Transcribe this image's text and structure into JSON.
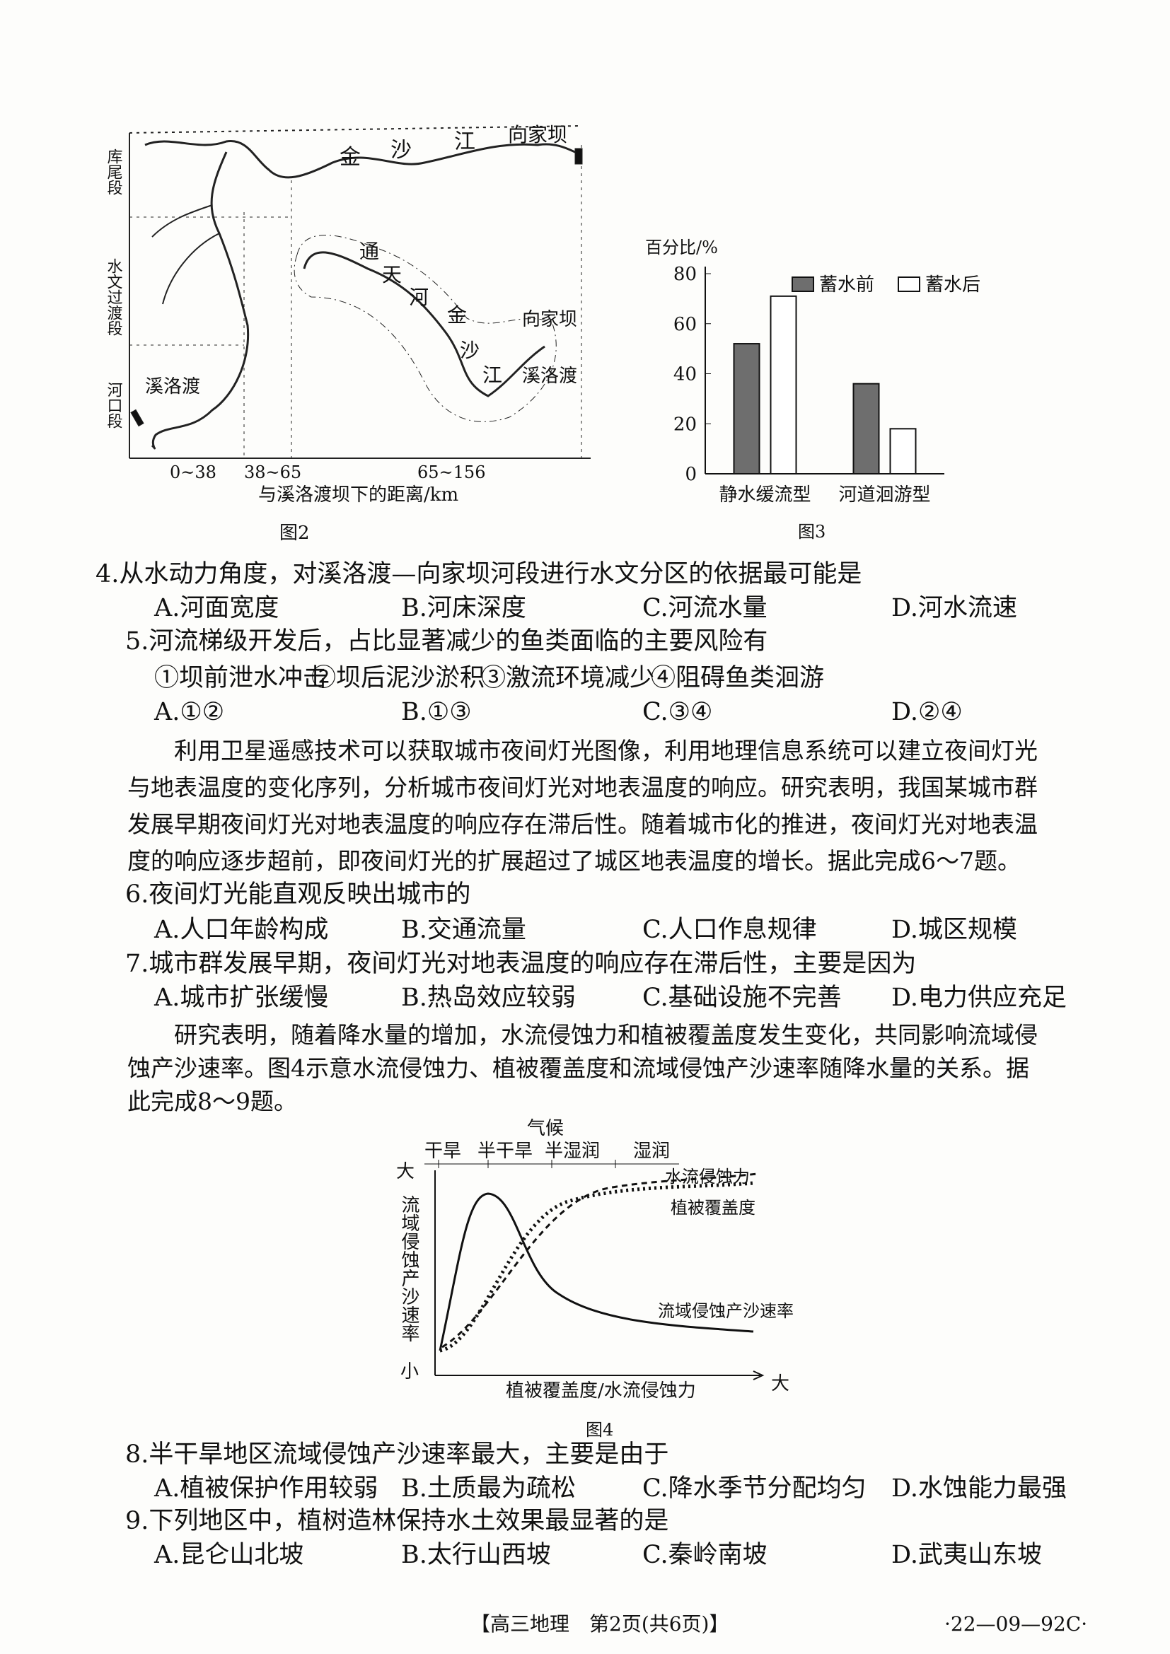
{
  "figure2": {
    "caption": "图2",
    "river_labels": [
      "金",
      "沙",
      "江"
    ],
    "dam_top": "向家坝",
    "left_sections": [
      "库尾段",
      "水文过渡段",
      "河口段"
    ],
    "inset_labels": [
      "通",
      "天",
      "河",
      "金",
      "沙",
      "江"
    ],
    "inset_dam_upper": "向家坝",
    "inset_dam_lower": "溪洛渡",
    "dam_left": "溪洛渡",
    "x_ticks": [
      "0~38",
      "38~65",
      "65~156"
    ],
    "x_label": "与溪洛渡坝下的距离/km"
  },
  "figure3": {
    "caption": "图3",
    "y_label": "百分比/%",
    "categories": [
      "静水缓流型",
      "河道洄游型"
    ],
    "series": [
      {
        "name": "蓄水前",
        "color": "#6e6e6e",
        "values": [
          52,
          36
        ]
      },
      {
        "name": "蓄水后",
        "color": "#ffffff",
        "values": [
          71,
          18
        ]
      }
    ],
    "ylim": [
      0,
      80
    ],
    "yticks": [
      0,
      20,
      40,
      60,
      80
    ]
  },
  "q4": {
    "stem": "4.从水动力角度，对溪洛渡—向家坝河段进行水文分区的依据最可能是",
    "options": [
      "A.河面宽度",
      "B.河床深度",
      "C.河流水量",
      "D.河水流速"
    ]
  },
  "q5": {
    "stem": "5.河流梯级开发后，占比显著减少的鱼类面临的主要风险有",
    "items": [
      "①坝前泄水冲击",
      "②坝后泥沙淤积",
      "③激流环境减少",
      "④阻碍鱼类洄游"
    ],
    "options": [
      "A.①②",
      "B.①③",
      "C.③④",
      "D.②④"
    ]
  },
  "passage1": "利用卫星遥感技术可以获取城市夜间灯光图像，利用地理信息系统可以建立夜间灯光与地表温度的变化序列，分析城市夜间灯光对地表温度的响应。研究表明，我国某城市群发展早期夜间灯光对地表温度的响应存在滞后性。随着城市化的推进，夜间灯光对地表温度的响应逐步超前，即夜间灯光的扩展超过了城区地表温度的增长。据此完成6～7题。",
  "q6": {
    "stem": "6.夜间灯光能直观反映出城市的",
    "options": [
      "A.人口年龄构成",
      "B.交通流量",
      "C.人口作息规律",
      "D.城区规模"
    ]
  },
  "q7": {
    "stem": "7.城市群发展早期，夜间灯光对地表温度的响应存在滞后性，主要是因为",
    "options": [
      "A.城市扩张缓慢",
      "B.热岛效应较弱",
      "C.基础设施不完善",
      "D.电力供应充足"
    ]
  },
  "passage2": "研究表明，随着降水量的增加，水流侵蚀力和植被覆盖度发生变化，共同影响流域侵蚀产沙速率。图4示意水流侵蚀力、植被覆盖度和流域侵蚀产沙速率随降水量的关系。据此完成8～9题。",
  "figure4": {
    "caption": "图4",
    "title": "气候",
    "climates": [
      "干旱",
      "半干旱",
      "半湿润",
      "湿润"
    ],
    "y_label": "流域侵蚀产沙速率",
    "y_high": "大",
    "y_low": "小",
    "x_label": "植被覆盖度/水流侵蚀力",
    "x_high": "大",
    "curves": [
      "水流侵蚀力",
      "植被覆盖度",
      "流域侵蚀产沙速率"
    ]
  },
  "q8": {
    "stem": "8.半干旱地区流域侵蚀产沙速率最大，主要是由于",
    "options": [
      "A.植被保护作用较弱",
      "B.土质最为疏松",
      "C.降水季节分配均匀",
      "D.水蚀能力最强"
    ]
  },
  "q9": {
    "stem": "9.下列地区中，植树造林保持水土效果最显著的是",
    "options": [
      "A.昆仑山北坡",
      "B.太行山西坡",
      "C.秦岭南坡",
      "D.武夷山东坡"
    ]
  },
  "footer": {
    "left": "【高三地理　第2页(共6页)】",
    "right": "·22—09—92C·"
  }
}
